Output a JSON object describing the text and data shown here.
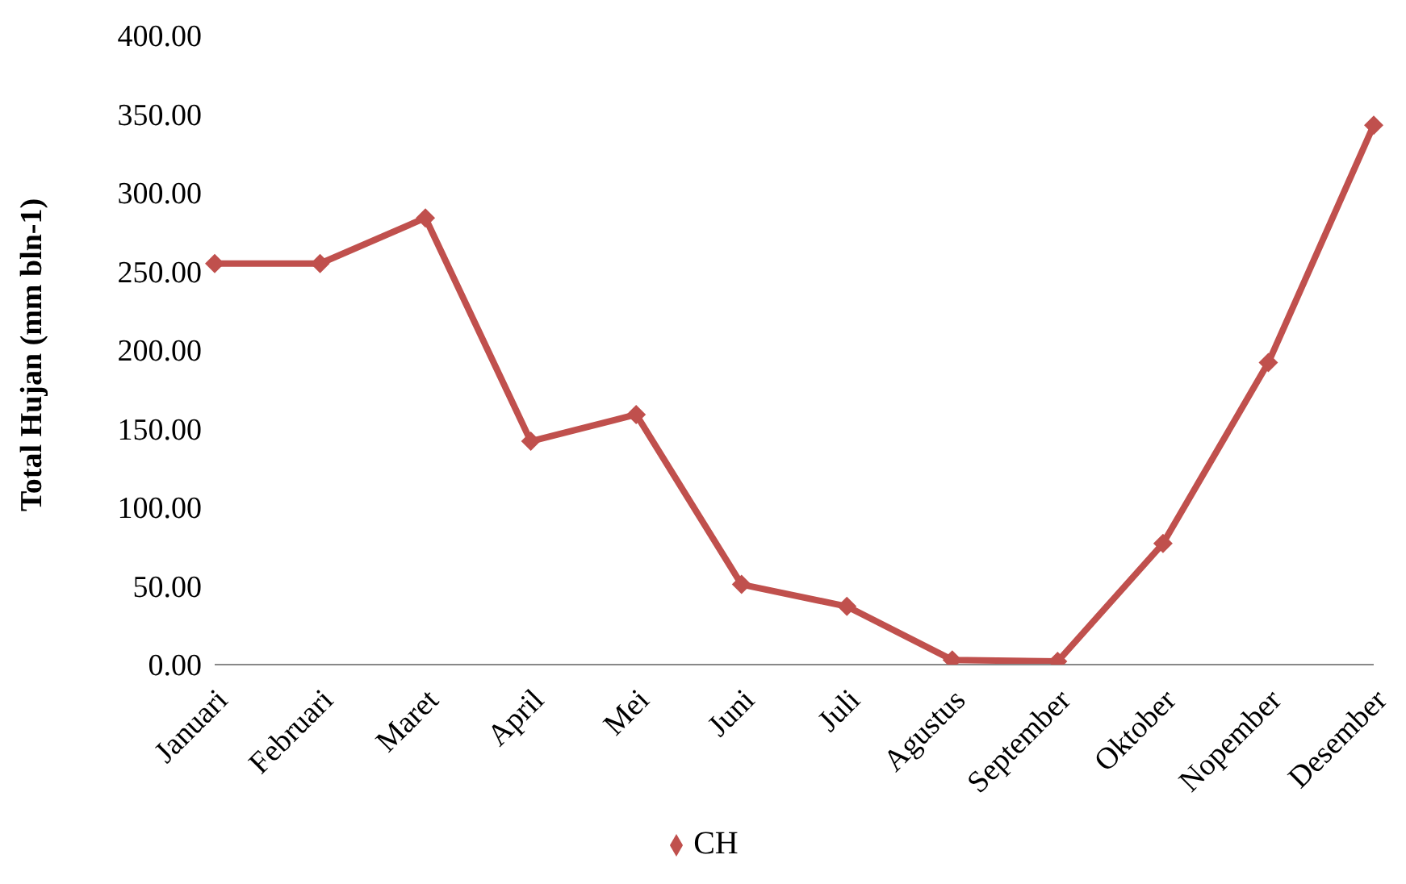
{
  "chart_data": {
    "type": "line",
    "ylabel": "Total Hujan (mm bln-1)",
    "categories": [
      "Januari",
      "Februari",
      "Maret",
      "April",
      "Mei",
      "Juni",
      "Juli",
      "Agustus",
      "September",
      "Oktober",
      "Nopember",
      "Desember"
    ],
    "series": [
      {
        "name": "CH",
        "color": "#c0504d",
        "values": [
          255,
          255,
          284,
          142,
          159,
          51,
          37,
          3,
          2,
          77,
          192,
          343
        ]
      }
    ],
    "ylim": [
      0,
      400
    ],
    "yticks": [
      {
        "value": 0,
        "label": "0.00"
      },
      {
        "value": 50,
        "label": "50.00"
      },
      {
        "value": 100,
        "label": "100.00"
      },
      {
        "value": 150,
        "label": "150.00"
      },
      {
        "value": 200,
        "label": "200.00"
      },
      {
        "value": 250,
        "label": "250.00"
      },
      {
        "value": 300,
        "label": "300.00"
      },
      {
        "value": 350,
        "label": "350.00"
      },
      {
        "value": 400,
        "label": "400.00"
      }
    ],
    "grid": false,
    "legend": "bottom",
    "marker": "diamond",
    "line_style": "solid"
  }
}
